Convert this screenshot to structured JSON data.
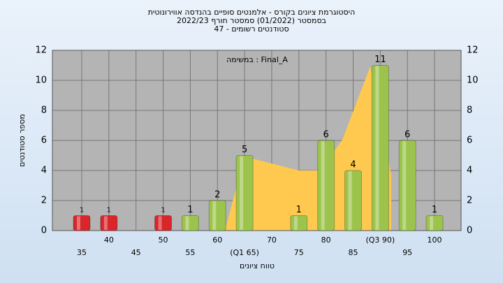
{
  "chart_data": {
    "type": "bar",
    "title": [
      "היסטוגרמת ציונים בקורס - אלמנטים סופיים בהנדסה אווירונוטית",
      "בסמסטר  (01/2022)  סמסטר חורף 2022/23",
      "סטודנטים רשומים - 47"
    ],
    "annotation": "במשימה : Final_A",
    "x_label": "טווח ציונים",
    "y_label": "מספר סטודנטים",
    "categories": [
      "35",
      "40",
      "45",
      "50",
      "55",
      "60",
      "(Q1 65)",
      "70",
      "75",
      "80",
      "85",
      "(Q3 90)",
      "95",
      "100"
    ],
    "values": [
      1,
      1,
      0,
      1,
      1,
      2,
      5,
      0,
      1,
      6,
      4,
      11,
      6,
      1
    ],
    "colors": [
      "#d8262b",
      "#d8262b",
      "#d8262b",
      "#d8262b",
      "#9cc44c",
      "#9cc44c",
      "#9cc44c",
      "#9cc44c",
      "#9cc44c",
      "#9cc44c",
      "#9cc44c",
      "#9cc44c",
      "#9cc44c",
      "#9cc44c"
    ],
    "ylim": [
      0,
      12
    ],
    "yticks": [
      0,
      2,
      4,
      6,
      8,
      10,
      12
    ],
    "grid": true
  }
}
